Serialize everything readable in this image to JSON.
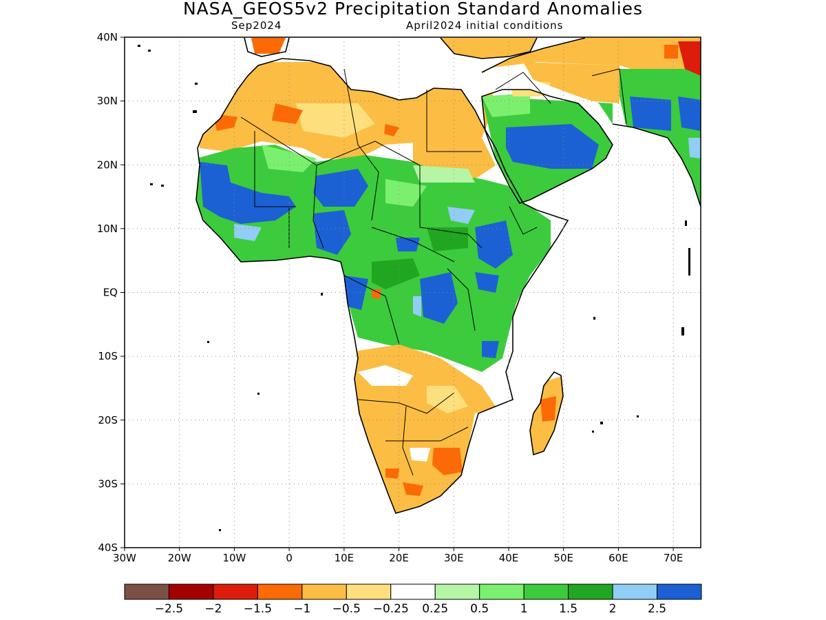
{
  "title": "NASA_GEOS5v2 Precipitation Standard Anomalies",
  "valid_month": "Sep2024",
  "initial_conditions": "April2024 initial conditions",
  "map": {
    "region": "Africa",
    "lon_range": [
      -30,
      75
    ],
    "lat_range": [
      -40,
      40
    ],
    "lon_ticks": [
      "30W",
      "20W",
      "10W",
      "0",
      "10E",
      "20E",
      "30E",
      "40E",
      "50E",
      "60E",
      "70E"
    ],
    "lat_ticks": [
      "40N",
      "30N",
      "20N",
      "10N",
      "EQ",
      "10S",
      "20S",
      "30S",
      "40S"
    ],
    "grid": "dotted"
  },
  "colorbar": {
    "colors": [
      "#7a5047",
      "#a30000",
      "#dd1c0c",
      "#fc6a05",
      "#fbbd43",
      "#fde07d",
      "#ffffff",
      "#b6f5a5",
      "#7bf06f",
      "#3ccb3c",
      "#21a621",
      "#92cdf5",
      "#1c61d3"
    ],
    "labels": [
      "-2.5",
      "-2",
      "-1.5",
      "-1",
      "-0.5",
      "-0.25",
      "0.25",
      "0.5",
      "1",
      "1.5",
      "2",
      "2.5"
    ]
  }
}
